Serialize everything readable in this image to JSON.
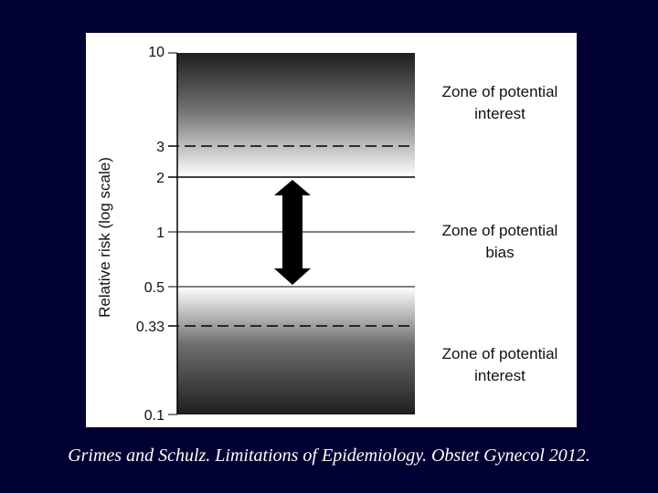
{
  "diagram": {
    "y_axis_label": "Relative risk (log scale)",
    "scale": "log",
    "ticks": [
      "10",
      "3",
      "2",
      "1",
      "0.5",
      "0.33",
      "0.1"
    ],
    "zones": [
      {
        "line1": "Zone of potential",
        "line2": "interest"
      },
      {
        "line1": "Zone of potential",
        "line2": "bias"
      },
      {
        "line1": "Zone of potential",
        "line2": "interest"
      }
    ],
    "arrow": "double-headed-arrow",
    "colors": {
      "dark": "#1e1e1e",
      "light": "#ffffff"
    }
  },
  "citation": "Grimes and Schulz. Limitations of Epidemiology. Obstet Gynecol 2012."
}
